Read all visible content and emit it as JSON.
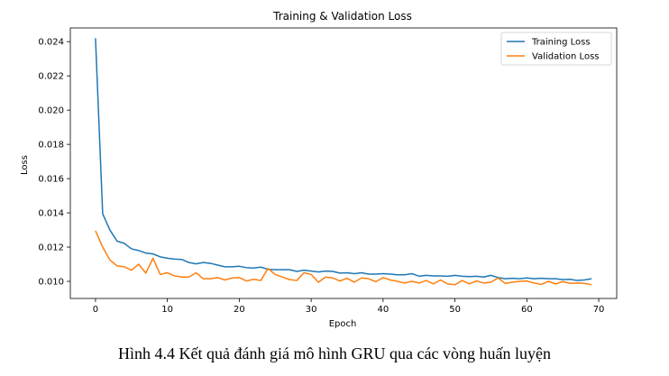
{
  "chart_data": {
    "type": "line",
    "title": "Training & Validation Loss",
    "xlabel": "Epoch",
    "ylabel": "Loss",
    "xlim": [
      -3.5,
      72.5
    ],
    "ylim": [
      0.009,
      0.0248
    ],
    "xticks": [
      0,
      10,
      20,
      30,
      40,
      50,
      60,
      70
    ],
    "yticks": [
      0.01,
      0.012,
      0.014,
      0.016,
      0.018,
      0.02,
      0.022,
      0.024
    ],
    "ytick_labels": [
      "0.010",
      "0.012",
      "0.014",
      "0.016",
      "0.018",
      "0.020",
      "0.022",
      "0.024"
    ],
    "legend_position": "top-right",
    "x": [
      0,
      1,
      2,
      3,
      4,
      5,
      6,
      7,
      8,
      9,
      10,
      11,
      12,
      13,
      14,
      15,
      16,
      17,
      18,
      19,
      20,
      21,
      22,
      23,
      24,
      25,
      26,
      27,
      28,
      29,
      30,
      31,
      32,
      33,
      34,
      35,
      36,
      37,
      38,
      39,
      40,
      41,
      42,
      43,
      44,
      45,
      46,
      47,
      48,
      49,
      50,
      51,
      52,
      53,
      54,
      55,
      56,
      57,
      58,
      59,
      60,
      61,
      62,
      63,
      64,
      65,
      66,
      67,
      68,
      69
    ],
    "series": [
      {
        "name": "Training Loss",
        "color": "#1f77b4",
        "values": [
          0.0242,
          0.01395,
          0.013,
          0.01235,
          0.01222,
          0.0119,
          0.0118,
          0.01165,
          0.0116,
          0.01143,
          0.01135,
          0.0113,
          0.01128,
          0.0111,
          0.01102,
          0.0111,
          0.01105,
          0.01095,
          0.01085,
          0.01085,
          0.01088,
          0.0108,
          0.01078,
          0.01083,
          0.0107,
          0.01068,
          0.01068,
          0.01068,
          0.01058,
          0.01065,
          0.0106,
          0.01055,
          0.0106,
          0.01058,
          0.01048,
          0.0105,
          0.01045,
          0.0105,
          0.01042,
          0.01042,
          0.01045,
          0.01042,
          0.01038,
          0.01038,
          0.01045,
          0.0103,
          0.01035,
          0.01032,
          0.01032,
          0.0103,
          0.01035,
          0.0103,
          0.01028,
          0.0103,
          0.01025,
          0.01035,
          0.01022,
          0.01015,
          0.01018,
          0.01015,
          0.0102,
          0.01015,
          0.01018,
          0.01015,
          0.01015,
          0.0101,
          0.01012,
          0.01005,
          0.01008,
          0.01015
        ]
      },
      {
        "name": "Validation Loss",
        "color": "#ff7f0e",
        "values": [
          0.01295,
          0.012,
          0.01125,
          0.0109,
          0.01085,
          0.01065,
          0.011,
          0.01048,
          0.01135,
          0.0104,
          0.0105,
          0.01032,
          0.01025,
          0.01025,
          0.0105,
          0.01015,
          0.01015,
          0.01022,
          0.01008,
          0.0102,
          0.01022,
          0.01002,
          0.01012,
          0.01005,
          0.01075,
          0.0104,
          0.01025,
          0.0101,
          0.01005,
          0.0105,
          0.0104,
          0.00995,
          0.01025,
          0.0102,
          0.01002,
          0.01018,
          0.00995,
          0.0102,
          0.01015,
          0.00998,
          0.01022,
          0.01008,
          0.01,
          0.0099,
          0.01,
          0.0099,
          0.01005,
          0.00985,
          0.01008,
          0.00985,
          0.0098,
          0.01005,
          0.00985,
          0.01002,
          0.0099,
          0.00995,
          0.0102,
          0.00988,
          0.00995,
          0.01,
          0.01002,
          0.0099,
          0.00982,
          0.01,
          0.00985,
          0.00998,
          0.00988,
          0.0099,
          0.00988,
          0.0098
        ]
      }
    ]
  },
  "caption": "Hình 4.4 Kết quả đánh giá mô hình GRU qua các vòng huấn luyện"
}
